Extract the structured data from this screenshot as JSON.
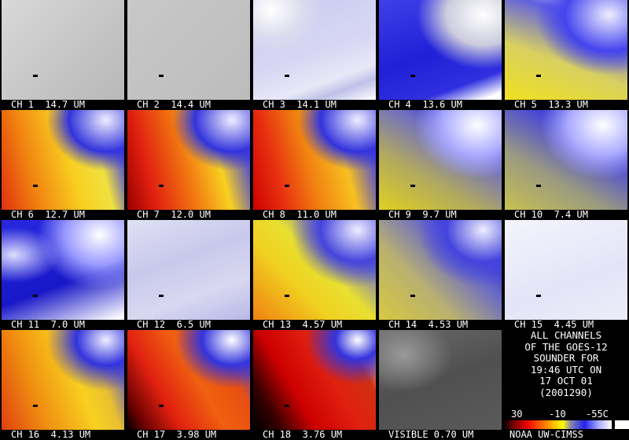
{
  "panels": [
    {
      "label": "CH 1  14.7 UM"
    },
    {
      "label": "CH 2  14.4 UM"
    },
    {
      "label": "CH 3  14.1 UM"
    },
    {
      "label": "CH 4  13.6 UM"
    },
    {
      "label": "CH 5  13.3 UM"
    },
    {
      "label": "CH 6  12.7 UM"
    },
    {
      "label": "CH 7  12.0 UM"
    },
    {
      "label": "CH 8  11.0 UM"
    },
    {
      "label": "CH 9  9.7 UM"
    },
    {
      "label": "CH 10  7.4 UM"
    },
    {
      "label": "CH 11  7.0 UM"
    },
    {
      "label": "CH 12  6.5 UM"
    },
    {
      "label": "CH 13  4.57 UM"
    },
    {
      "label": "CH 14  4.53 UM"
    },
    {
      "label": "CH 15  4.45 UM"
    },
    {
      "label": "CH 16  4.13 UM"
    },
    {
      "label": "CH 17  3.98 UM"
    },
    {
      "label": "CH 18  3.76 UM"
    },
    {
      "label": "VISIBLE 0.70 UM"
    }
  ],
  "info": {
    "lines": [
      "ALL CHANNELS",
      "OF THE GOES-12",
      "SOUNDER FOR",
      "19:46 UTC ON",
      "17 OCT 01",
      "(2001290)"
    ],
    "colorbar_labels": [
      "30",
      "-10",
      "-55C"
    ],
    "credit": "NOAA UW-CIMSS"
  }
}
